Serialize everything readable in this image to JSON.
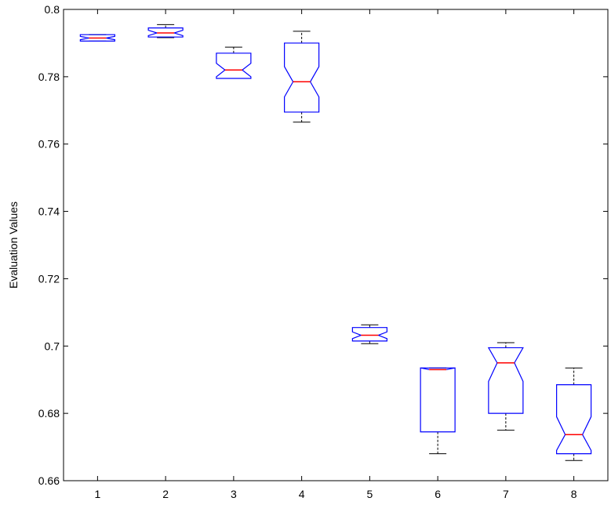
{
  "chart_data": {
    "type": "boxplot",
    "title": "",
    "xlabel": "",
    "ylabel": "Evaluation Values",
    "xlim": [
      0.5,
      8.5
    ],
    "ylim": [
      0.66,
      0.8
    ],
    "xticks": [
      "1",
      "2",
      "3",
      "4",
      "5",
      "6",
      "7",
      "8"
    ],
    "yticks": [
      "0.66",
      "0.68",
      "0.7",
      "0.72",
      "0.74",
      "0.76",
      "0.78",
      "0.8"
    ],
    "notched": true,
    "grid": false,
    "boxes": [
      {
        "x": 1,
        "whisker_low": 0.7906,
        "q1": 0.7906,
        "median": 0.7915,
        "q3": 0.7925,
        "whisker_high": 0.7925,
        "notch_low": 0.791,
        "notch_high": 0.792
      },
      {
        "x": 2,
        "whisker_low": 0.7916,
        "q1": 0.7918,
        "median": 0.793,
        "q3": 0.7945,
        "whisker_high": 0.7955,
        "notch_low": 0.7922,
        "notch_high": 0.7938
      },
      {
        "x": 3,
        "whisker_low": 0.7795,
        "q1": 0.7795,
        "median": 0.782,
        "q3": 0.787,
        "whisker_high": 0.7888,
        "notch_low": 0.78,
        "notch_high": 0.784
      },
      {
        "x": 4,
        "whisker_low": 0.7665,
        "q1": 0.7695,
        "median": 0.7785,
        "q3": 0.79,
        "whisker_high": 0.7935,
        "notch_low": 0.774,
        "notch_high": 0.783
      },
      {
        "x": 5,
        "whisker_low": 0.7007,
        "q1": 0.7015,
        "median": 0.7032,
        "q3": 0.7055,
        "whisker_high": 0.7063,
        "notch_low": 0.7022,
        "notch_high": 0.7042
      },
      {
        "x": 6,
        "whisker_low": 0.668,
        "q1": 0.6745,
        "median": 0.693,
        "q3": 0.6935,
        "whisker_high": 0.6935,
        "notch_low": 0.6935,
        "notch_high": 0.6935
      },
      {
        "x": 7,
        "whisker_low": 0.675,
        "q1": 0.68,
        "median": 0.695,
        "q3": 0.6995,
        "whisker_high": 0.701,
        "notch_low": 0.6895,
        "notch_high": 0.6995
      },
      {
        "x": 8,
        "whisker_low": 0.666,
        "q1": 0.668,
        "median": 0.6737,
        "q3": 0.6885,
        "whisker_high": 0.6935,
        "notch_low": 0.669,
        "notch_high": 0.679
      }
    ],
    "colors": {
      "box": "#0000ff",
      "median": "#ff0000",
      "whisker": "#000000",
      "axis": "#000000"
    }
  }
}
